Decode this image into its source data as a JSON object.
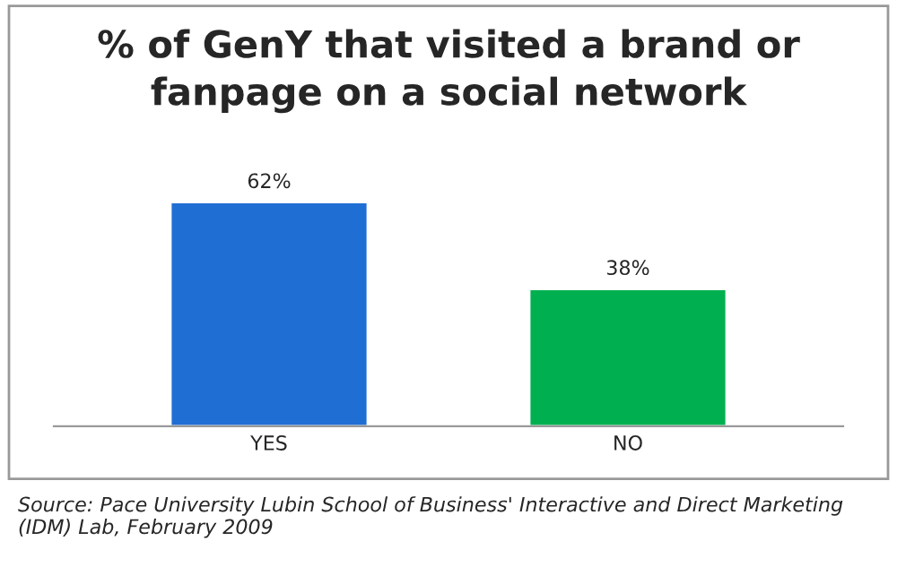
{
  "chart_data": {
    "type": "bar",
    "title": "% of GenY that visited a brand or\nfanpage on a social network",
    "categories": [
      "YES",
      "NO"
    ],
    "values": [
      62,
      38
    ],
    "colors": [
      "#1f6ed4",
      "#00b050"
    ],
    "value_labels": [
      "62%",
      "38%"
    ],
    "annotations": [
      "Source: Pace University Lubin School of Business' Interactive and Direct Marketing (IDM) Lab, February 2009"
    ],
    "grid": false,
    "legend": false
  }
}
